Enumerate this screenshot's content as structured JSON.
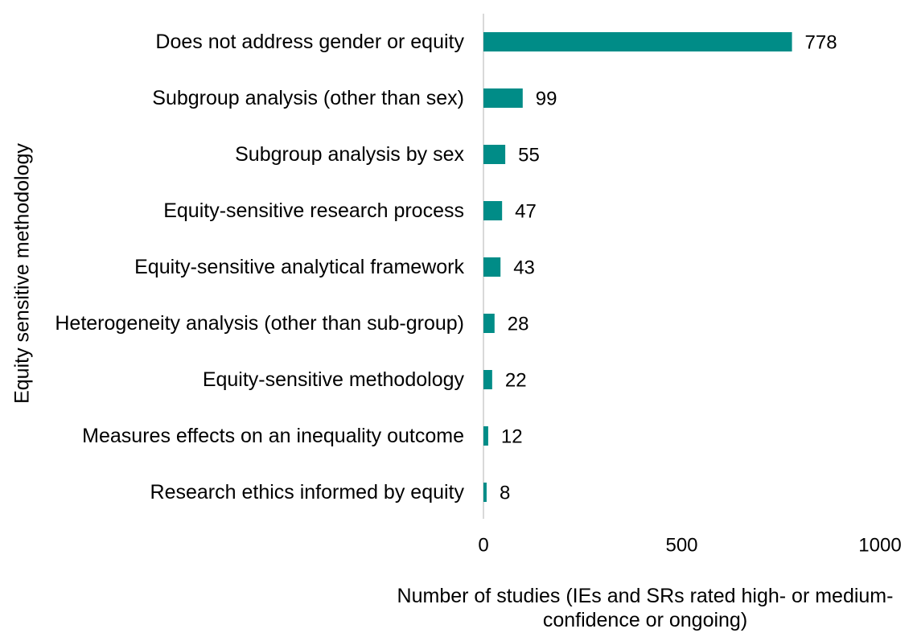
{
  "chart_data": {
    "type": "bar",
    "orientation": "horizontal",
    "categories": [
      "Does not address gender or equity",
      "Subgroup analysis (other than sex)",
      "Subgroup analysis by sex",
      "Equity-sensitive research process",
      "Equity-sensitive analytical framework",
      "Heterogeneity analysis (other than sub-group)",
      "Equity-sensitive methodology",
      "Measures effects on an inequality outcome",
      "Research ethics informed by equity"
    ],
    "values": [
      778,
      99,
      55,
      47,
      43,
      28,
      22,
      12,
      8
    ],
    "color": "#008c87",
    "xlim": [
      0,
      1000
    ],
    "xticks": [
      0,
      500,
      1000
    ],
    "x_label": "Number of studies (IEs and SRs rated high- or medium-confidence or ongoing)",
    "y_label": "Equity sensitive methodology",
    "grid": false
  }
}
